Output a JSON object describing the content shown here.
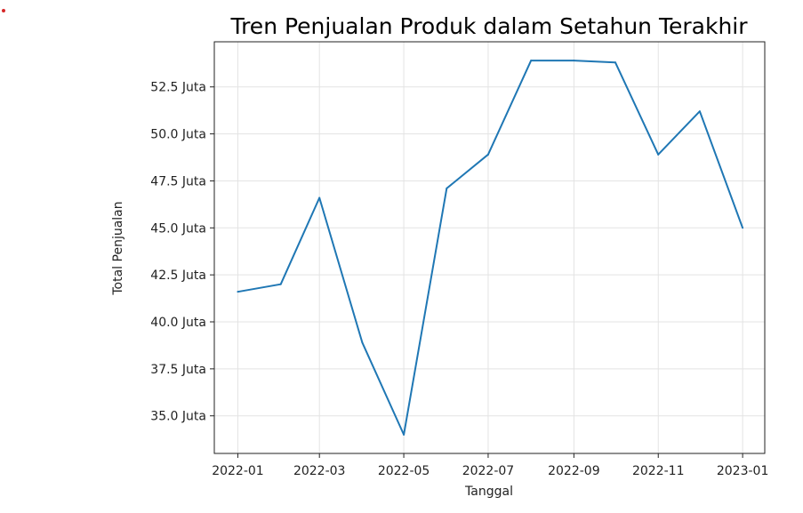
{
  "chart_data": {
    "type": "line",
    "title": "Tren Penjualan Produk dalam Setahun Terakhir",
    "xlabel": "Tanggal",
    "ylabel": "Total Penjualan",
    "grid": true,
    "line_color": "#1f77b4",
    "x": [
      "2022-01-01",
      "2022-02-01",
      "2022-03-01",
      "2022-04-01",
      "2022-05-01",
      "2022-06-01",
      "2022-07-01",
      "2022-08-01",
      "2022-09-01",
      "2022-10-01",
      "2022-11-01",
      "2022-12-01",
      "2023-01-01"
    ],
    "values": [
      41.6,
      42.0,
      46.6,
      38.9,
      34.0,
      47.1,
      48.9,
      53.9,
      53.9,
      53.8,
      48.9,
      51.2,
      45.0
    ],
    "y_ticks": [
      {
        "value": 35.0,
        "label": "35.0 Juta"
      },
      {
        "value": 37.5,
        "label": "37.5 Juta"
      },
      {
        "value": 40.0,
        "label": "40.0 Juta"
      },
      {
        "value": 42.5,
        "label": "42.5 Juta"
      },
      {
        "value": 45.0,
        "label": "45.0 Juta"
      },
      {
        "value": 47.5,
        "label": "47.5 Juta"
      },
      {
        "value": 50.0,
        "label": "50.0 Juta"
      },
      {
        "value": 52.5,
        "label": "52.5 Juta"
      }
    ],
    "x_ticks": [
      {
        "value": "2022-01-01",
        "label": "2022-01"
      },
      {
        "value": "2022-03-01",
        "label": "2022-03"
      },
      {
        "value": "2022-05-01",
        "label": "2022-05"
      },
      {
        "value": "2022-07-01",
        "label": "2022-07"
      },
      {
        "value": "2022-09-01",
        "label": "2022-09"
      },
      {
        "value": "2022-11-01",
        "label": "2022-11"
      },
      {
        "value": "2023-01-01",
        "label": "2023-01"
      }
    ],
    "xlim": [
      "2021-12-15",
      "2023-01-17"
    ],
    "ylim": [
      33.0,
      54.9
    ]
  }
}
